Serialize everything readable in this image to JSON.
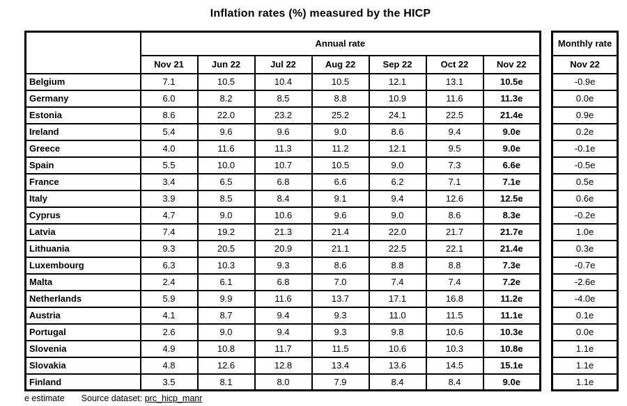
{
  "title": "Inflation rates (%) measured by the HICP",
  "annual": {
    "group_header": "Annual rate",
    "columns": [
      "Nov 21",
      "Jun 22",
      "Jul 22",
      "Aug 22",
      "Sep 22",
      "Oct 22",
      "Nov 22"
    ]
  },
  "monthly": {
    "group_header": "Monthly rate",
    "column": "Nov 22"
  },
  "rows": [
    {
      "country": "Belgium",
      "annual": [
        "7.1",
        "10.5",
        "10.4",
        "10.5",
        "12.1",
        "13.1",
        "10.5e"
      ],
      "monthly": "-0.9e"
    },
    {
      "country": "Germany",
      "annual": [
        "6.0",
        "8.2",
        "8.5",
        "8.8",
        "10.9",
        "11.6",
        "11.3e"
      ],
      "monthly": "0.0e"
    },
    {
      "country": "Estonia",
      "annual": [
        "8.6",
        "22.0",
        "23.2",
        "25.2",
        "24.1",
        "22.5",
        "21.4e"
      ],
      "monthly": "0.9e"
    },
    {
      "country": "Ireland",
      "annual": [
        "5.4",
        "9.6",
        "9.6",
        "9.0",
        "8.6",
        "9.4",
        "9.0e"
      ],
      "monthly": "0.2e"
    },
    {
      "country": "Greece",
      "annual": [
        "4.0",
        "11.6",
        "11.3",
        "11.2",
        "12.1",
        "9.5",
        "9.0e"
      ],
      "monthly": "-0.1e"
    },
    {
      "country": "Spain",
      "annual": [
        "5.5",
        "10.0",
        "10.7",
        "10.5",
        "9.0",
        "7.3",
        "6.6e"
      ],
      "monthly": "-0.5e"
    },
    {
      "country": "France",
      "annual": [
        "3.4",
        "6.5",
        "6.8",
        "6.6",
        "6.2",
        "7.1",
        "7.1e"
      ],
      "monthly": "0.5e"
    },
    {
      "country": "Italy",
      "annual": [
        "3.9",
        "8.5",
        "8.4",
        "9.1",
        "9.4",
        "12.6",
        "12.5e"
      ],
      "monthly": "0.6e"
    },
    {
      "country": "Cyprus",
      "annual": [
        "4.7",
        "9.0",
        "10.6",
        "9.6",
        "9.0",
        "8.6",
        "8.3e"
      ],
      "monthly": "-0.2e"
    },
    {
      "country": "Latvia",
      "annual": [
        "7.4",
        "19.2",
        "21.3",
        "21.4",
        "22.0",
        "21.7",
        "21.7e"
      ],
      "monthly": "1.0e"
    },
    {
      "country": "Lithuania",
      "annual": [
        "9.3",
        "20.5",
        "20.9",
        "21.1",
        "22.5",
        "22.1",
        "21.4e"
      ],
      "monthly": "0.3e"
    },
    {
      "country": "Luxembourg",
      "annual": [
        "6.3",
        "10.3",
        "9.3",
        "8.6",
        "8.8",
        "8.8",
        "7.3e"
      ],
      "monthly": "-0.7e"
    },
    {
      "country": "Malta",
      "annual": [
        "2.4",
        "6.1",
        "6.8",
        "7.0",
        "7.4",
        "7.4",
        "7.2e"
      ],
      "monthly": "-2.6e"
    },
    {
      "country": "Netherlands",
      "annual": [
        "5.9",
        "9.9",
        "11.6",
        "13.7",
        "17.1",
        "16.8",
        "11.2e"
      ],
      "monthly": "-4.0e"
    },
    {
      "country": "Austria",
      "annual": [
        "4.1",
        "8.7",
        "9.4",
        "9.3",
        "11.0",
        "11.5",
        "11.1e"
      ],
      "monthly": "0.1e"
    },
    {
      "country": "Portugal",
      "annual": [
        "2.6",
        "9.0",
        "9.4",
        "9.3",
        "9.8",
        "10.6",
        "10.3e"
      ],
      "monthly": "0.0e"
    },
    {
      "country": "Slovenia",
      "annual": [
        "4.9",
        "10.8",
        "11.7",
        "11.5",
        "10.6",
        "10.3",
        "10.8e"
      ],
      "monthly": "1.1e"
    },
    {
      "country": "Slovakia",
      "annual": [
        "4.8",
        "12.6",
        "12.8",
        "13.4",
        "13.6",
        "14.5",
        "15.1e"
      ],
      "monthly": "1.1e"
    },
    {
      "country": "Finland",
      "annual": [
        "3.5",
        "8.1",
        "8.0",
        "7.9",
        "8.4",
        "8.4",
        "9.0e"
      ],
      "monthly": "1.1e"
    }
  ],
  "footer": {
    "note": "e estimate",
    "source_label": "Source dataset:",
    "source_link": "prc_hicp_manr"
  }
}
